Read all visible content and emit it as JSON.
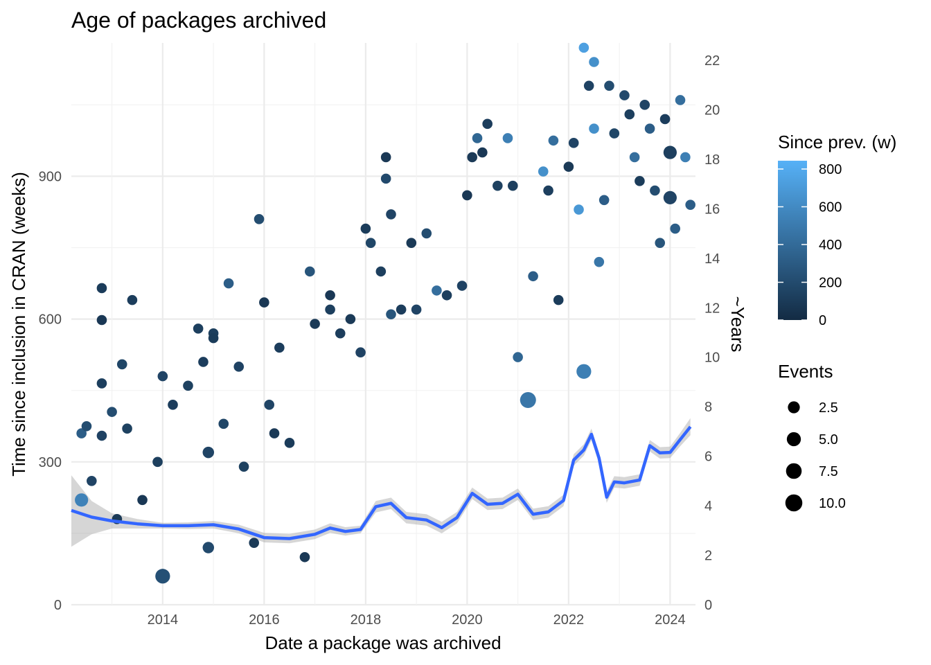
{
  "chart_data": {
    "type": "scatter",
    "title": "Age of packages archived",
    "xlabel": "Date a package was archived",
    "ylabel": "Time since inclusion in CRAN (weeks)",
    "y2label": "~Years",
    "xlim": [
      2012.2,
      2024.5
    ],
    "ylim": [
      0,
      1180
    ],
    "y2lim": [
      0,
      22.7
    ],
    "grid": true,
    "x_ticks": [
      2014,
      2016,
      2018,
      2020,
      2022,
      2024
    ],
    "x_tick_labels": [
      "2014",
      "2016",
      "2018",
      "2020",
      "2022",
      "2024"
    ],
    "y_ticks": [
      0,
      300,
      600,
      900
    ],
    "y_tick_labels": [
      "0",
      "300",
      "600",
      "900"
    ],
    "y2_ticks": [
      0,
      2,
      4,
      6,
      8,
      10,
      12,
      14,
      16,
      18,
      20,
      22
    ],
    "y2_tick_labels": [
      "0",
      "2",
      "4",
      "6",
      "8",
      "10",
      "12",
      "14",
      "16",
      "18",
      "20",
      "22"
    ],
    "smooth": {
      "name": "smooth",
      "color": "#3366FF",
      "x": [
        2012.2,
        2012.6,
        2013.0,
        2013.5,
        2014.0,
        2014.5,
        2015.0,
        2015.5,
        2016.0,
        2016.5,
        2017.0,
        2017.3,
        2017.6,
        2017.9,
        2018.2,
        2018.5,
        2018.8,
        2019.2,
        2019.5,
        2019.8,
        2020.1,
        2020.4,
        2020.7,
        2021.0,
        2021.3,
        2021.6,
        2021.9,
        2022.1,
        2022.3,
        2022.45,
        2022.6,
        2022.75,
        2022.9,
        2023.1,
        2023.4,
        2023.6,
        2023.8,
        2024.0,
        2024.2,
        2024.4
      ],
      "y": [
        198,
        184,
        176,
        170,
        166,
        166,
        168,
        159,
        141,
        139,
        148,
        161,
        154,
        158,
        206,
        213,
        183,
        178,
        162,
        183,
        234,
        211,
        213,
        232,
        190,
        195,
        219,
        304,
        325,
        358,
        308,
        226,
        258,
        256,
        262,
        334,
        319,
        320,
        347,
        374
      ]
    },
    "smooth_band": {
      "name": "smooth-band",
      "color": "#999999",
      "x": [
        2012.2,
        2012.6,
        2013.0,
        2013.5,
        2014.0,
        2014.5,
        2015.0,
        2015.5,
        2016.0,
        2016.5,
        2017.0,
        2017.3,
        2017.6,
        2017.9,
        2018.2,
        2018.5,
        2018.8,
        2019.2,
        2019.5,
        2019.8,
        2020.1,
        2020.4,
        2020.7,
        2021.0,
        2021.3,
        2021.6,
        2021.9,
        2022.1,
        2022.3,
        2022.45,
        2022.6,
        2022.75,
        2022.9,
        2023.1,
        2023.4,
        2023.6,
        2023.8,
        2024.0,
        2024.2,
        2024.4
      ],
      "lower": [
        122,
        148,
        160,
        160,
        160,
        159,
        160,
        150,
        131,
        129,
        138,
        151,
        145,
        150,
        194,
        201,
        171,
        166,
        150,
        171,
        222,
        199,
        201,
        220,
        178,
        183,
        207,
        292,
        313,
        346,
        296,
        214,
        246,
        244,
        250,
        322,
        307,
        308,
        333,
        356
      ],
      "upper": [
        272,
        218,
        192,
        180,
        172,
        173,
        176,
        168,
        151,
        149,
        158,
        171,
        163,
        166,
        218,
        225,
        195,
        190,
        174,
        195,
        246,
        223,
        225,
        244,
        202,
        207,
        231,
        316,
        337,
        370,
        320,
        238,
        270,
        268,
        274,
        346,
        331,
        332,
        361,
        392
      ]
    },
    "legends": {
      "color": {
        "title": "Since prev. (w)",
        "range": [
          0,
          800
        ],
        "ticks": [
          0,
          200,
          400,
          600,
          800
        ],
        "tick_labels": [
          "0",
          "200",
          "400",
          "600",
          "800"
        ],
        "low_color": "#132B43",
        "high_color": "#56B1F7"
      },
      "size": {
        "title": "Events",
        "values": [
          2.5,
          5.0,
          7.5,
          10.0
        ],
        "labels": [
          "2.5",
          "5.0",
          "7.5",
          "10.0"
        ]
      }
    },
    "points": [
      [
        2012.4,
        220,
        520,
        4
      ],
      [
        2012.4,
        360,
        300,
        1
      ],
      [
        2012.5,
        375,
        200,
        1
      ],
      [
        2012.6,
        260,
        150,
        1
      ],
      [
        2012.8,
        665,
        100,
        1
      ],
      [
        2012.8,
        598,
        80,
        1
      ],
      [
        2012.8,
        465,
        120,
        1
      ],
      [
        2012.8,
        355,
        140,
        1
      ],
      [
        2013.0,
        405,
        200,
        1
      ],
      [
        2013.1,
        180,
        90,
        1
      ],
      [
        2013.2,
        505,
        160,
        1
      ],
      [
        2013.3,
        370,
        130,
        1
      ],
      [
        2013.4,
        640,
        110,
        1
      ],
      [
        2013.6,
        220,
        80,
        1
      ],
      [
        2013.9,
        300,
        120,
        1
      ],
      [
        2014.0,
        60,
        220,
        6
      ],
      [
        2014.0,
        480,
        150,
        1
      ],
      [
        2014.2,
        420,
        110,
        1
      ],
      [
        2014.5,
        460,
        130,
        1
      ],
      [
        2014.7,
        580,
        120,
        1
      ],
      [
        2014.8,
        510,
        110,
        1
      ],
      [
        2014.9,
        320,
        150,
        2
      ],
      [
        2014.9,
        120,
        180,
        2
      ],
      [
        2015.0,
        570,
        120,
        1
      ],
      [
        2015.0,
        560,
        100,
        1
      ],
      [
        2015.2,
        380,
        160,
        1
      ],
      [
        2015.3,
        675,
        300,
        1
      ],
      [
        2015.5,
        500,
        140,
        1
      ],
      [
        2015.6,
        290,
        130,
        1
      ],
      [
        2015.8,
        130,
        90,
        1
      ],
      [
        2015.9,
        810,
        200,
        1
      ],
      [
        2016.0,
        635,
        80,
        1
      ],
      [
        2016.1,
        420,
        150,
        1
      ],
      [
        2016.2,
        360,
        90,
        1
      ],
      [
        2016.3,
        540,
        110,
        1
      ],
      [
        2016.5,
        340,
        100,
        1
      ],
      [
        2016.8,
        100,
        80,
        1
      ],
      [
        2016.9,
        700,
        250,
        1
      ],
      [
        2017.0,
        590,
        90,
        1
      ],
      [
        2017.3,
        650,
        80,
        1
      ],
      [
        2017.3,
        620,
        120,
        1
      ],
      [
        2017.5,
        570,
        110,
        1
      ],
      [
        2017.7,
        600,
        90,
        1
      ],
      [
        2017.9,
        530,
        140,
        1
      ],
      [
        2018.0,
        790,
        100,
        1
      ],
      [
        2018.1,
        760,
        160,
        1
      ],
      [
        2018.3,
        700,
        120,
        1
      ],
      [
        2018.4,
        940,
        80,
        1
      ],
      [
        2018.4,
        895,
        180,
        1
      ],
      [
        2018.5,
        820,
        150,
        1
      ],
      [
        2018.5,
        610,
        250,
        1
      ],
      [
        2018.7,
        620,
        110,
        1
      ],
      [
        2018.9,
        760,
        90,
        1
      ],
      [
        2019.0,
        620,
        150,
        1
      ],
      [
        2019.2,
        780,
        200,
        1
      ],
      [
        2019.4,
        660,
        400,
        1
      ],
      [
        2019.6,
        650,
        120,
        1
      ],
      [
        2019.9,
        670,
        140,
        1
      ],
      [
        2020.0,
        860,
        80,
        1
      ],
      [
        2020.1,
        940,
        90,
        1
      ],
      [
        2020.2,
        980,
        350,
        1
      ],
      [
        2020.3,
        950,
        80,
        1
      ],
      [
        2020.4,
        1010,
        110,
        1
      ],
      [
        2020.6,
        880,
        130,
        1
      ],
      [
        2020.8,
        980,
        500,
        1
      ],
      [
        2020.9,
        880,
        120,
        1
      ],
      [
        2021.0,
        520,
        350,
        1
      ],
      [
        2021.2,
        430,
        450,
        8
      ],
      [
        2021.3,
        690,
        300,
        1
      ],
      [
        2021.5,
        910,
        600,
        1
      ],
      [
        2021.6,
        870,
        120,
        1
      ],
      [
        2021.7,
        975,
        400,
        1
      ],
      [
        2021.8,
        640,
        100,
        1
      ],
      [
        2022.0,
        920,
        90,
        1
      ],
      [
        2022.1,
        970,
        150,
        1
      ],
      [
        2022.2,
        830,
        650,
        1
      ],
      [
        2022.3,
        1170,
        700,
        1
      ],
      [
        2022.3,
        490,
        500,
        6
      ],
      [
        2022.4,
        1090,
        140,
        1
      ],
      [
        2022.5,
        1140,
        600,
        1
      ],
      [
        2022.5,
        1000,
        600,
        1
      ],
      [
        2022.6,
        720,
        450,
        1
      ],
      [
        2022.7,
        850,
        300,
        1
      ],
      [
        2022.8,
        1090,
        200,
        1
      ],
      [
        2022.9,
        990,
        160,
        1
      ],
      [
        2023.1,
        1070,
        180,
        1
      ],
      [
        2023.2,
        1030,
        120,
        1
      ],
      [
        2023.3,
        940,
        400,
        1
      ],
      [
        2023.4,
        890,
        100,
        1
      ],
      [
        2023.5,
        1050,
        150,
        1
      ],
      [
        2023.6,
        1000,
        300,
        1
      ],
      [
        2023.7,
        870,
        200,
        1
      ],
      [
        2023.8,
        760,
        250,
        1
      ],
      [
        2023.9,
        1020,
        110,
        1
      ],
      [
        2024.0,
        950,
        120,
        4
      ],
      [
        2024.0,
        855,
        150,
        4
      ],
      [
        2024.1,
        790,
        300,
        1
      ],
      [
        2024.2,
        1060,
        400,
        1
      ],
      [
        2024.3,
        940,
        500,
        1
      ],
      [
        2024.4,
        840,
        300,
        1
      ]
    ]
  }
}
